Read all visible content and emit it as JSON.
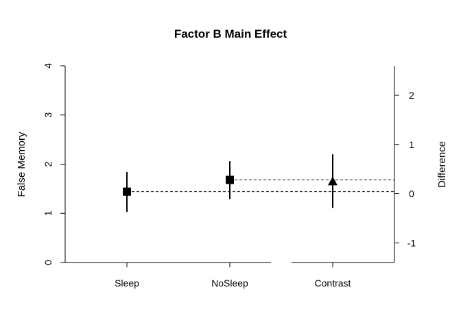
{
  "chart_data": {
    "type": "error-bar",
    "title": "Factor B Main Effect",
    "ylabel": "False Memory",
    "ylabel_right": "Difference",
    "ylim": [
      0,
      4
    ],
    "yticks": [
      0,
      1,
      2,
      3,
      4
    ],
    "ylim_right": [
      -1.4,
      2.6
    ],
    "yticks_right": [
      -1,
      0,
      1,
      2
    ],
    "categories": [
      "Sleep",
      "NoSleep",
      "Contrast"
    ],
    "points": [
      {
        "name": "Sleep",
        "value": 1.44,
        "lower": 1.03,
        "upper": 1.84,
        "marker": "square",
        "axis": "left"
      },
      {
        "name": "NoSleep",
        "value": 1.68,
        "lower": 1.29,
        "upper": 2.06,
        "marker": "square",
        "axis": "left"
      },
      {
        "name": "Contrast",
        "value": 0.24,
        "lower": -0.29,
        "upper": 0.8,
        "marker": "triangle",
        "axis": "right"
      }
    ],
    "reference_lines": [
      {
        "from": "Sleep",
        "level": 1.44,
        "style": "dashed"
      },
      {
        "from": "NoSleep",
        "level": 1.68,
        "style": "dashed"
      }
    ],
    "grid": false,
    "legend": "none"
  }
}
